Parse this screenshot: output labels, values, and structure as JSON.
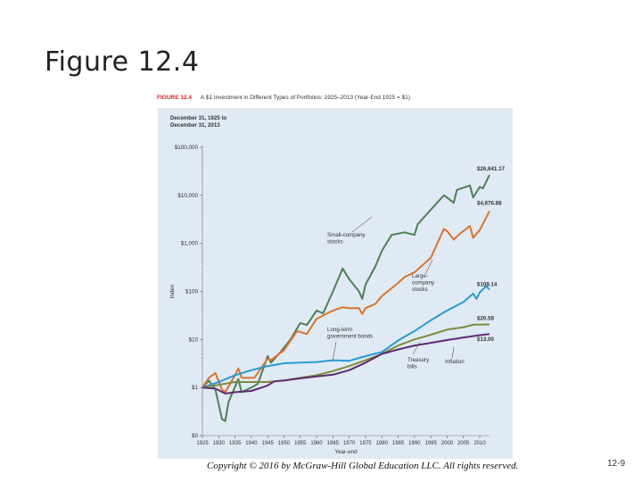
{
  "slide": {
    "title": "Figure 12.4",
    "copyright": "Copyright © 2016 by McGraw-Hill Global Education LLC. All rights reserved.",
    "number": "12-9"
  },
  "figure": {
    "label": "FIGURE 12.4",
    "caption": "A $1 Investment in Different Types of Portfolios: 1925–2013 (Year-End 1925 = $1)"
  },
  "chart_data": {
    "type": "line",
    "title": "A $1 Investment in Different Types of Portfolios: 1925–2013 (Year-End 1925 = $1)",
    "period_label": [
      "December 31, 1925 to",
      "December 31, 2013"
    ],
    "xlabel": "Year-end",
    "ylabel": "Index",
    "yscale": "log",
    "xlim": [
      1925,
      2013
    ],
    "ylim": [
      0.1,
      100000
    ],
    "x_ticks": [
      1925,
      1930,
      1935,
      1940,
      1945,
      1950,
      1955,
      1960,
      1965,
      1970,
      1975,
      1980,
      1985,
      1990,
      1995,
      2000,
      2005,
      2010
    ],
    "y_ticks": [
      {
        "value": 0.1,
        "label": "$0"
      },
      {
        "value": 1,
        "label": "$1"
      },
      {
        "value": 10,
        "label": "$10"
      },
      {
        "value": 100,
        "label": "$100"
      },
      {
        "value": 1000,
        "label": "$1,000"
      },
      {
        "value": 10000,
        "label": "$10,000"
      },
      {
        "value": 100000,
        "label": "$100,000"
      }
    ],
    "series": [
      {
        "name": "Small-company stocks",
        "color": "#4f7f55",
        "end_label": "$26,641.17",
        "x": [
          1925,
          1927,
          1929,
          1931,
          1932,
          1933,
          1936,
          1937,
          1940,
          1942,
          1945,
          1946,
          1949,
          1952,
          1955,
          1957,
          1960,
          1962,
          1965,
          1968,
          1970,
          1973,
          1974,
          1975,
          1978,
          1980,
          1983,
          1987,
          1990,
          1991,
          1995,
          1999,
          2000,
          2002,
          2003,
          2007,
          2008,
          2010,
          2011,
          2013
        ],
        "values": [
          1,
          1.4,
          0.9,
          0.22,
          0.2,
          0.5,
          1.5,
          0.8,
          1.0,
          1.2,
          4.5,
          3.3,
          5.5,
          10,
          22,
          20,
          40,
          35,
          100,
          300,
          180,
          100,
          70,
          140,
          330,
          700,
          1500,
          1700,
          1500,
          2500,
          5000,
          10000,
          9000,
          7000,
          13000,
          16000,
          9000,
          15000,
          14000,
          26641.17
        ]
      },
      {
        "name": "Large-company stocks",
        "color": "#d9742e",
        "end_label": "$4,676.88",
        "x": [
          1925,
          1927,
          1929,
          1931,
          1932,
          1935,
          1936,
          1937,
          1941,
          1945,
          1946,
          1950,
          1954,
          1957,
          1960,
          1965,
          1968,
          1970,
          1973,
          1974,
          1975,
          1978,
          1980,
          1985,
          1987,
          1990,
          1995,
          1999,
          2000,
          2002,
          2004,
          2007,
          2008,
          2010,
          2013
        ],
        "values": [
          1,
          1.6,
          2.0,
          0.9,
          0.8,
          1.8,
          2.5,
          1.6,
          1.6,
          4.0,
          3.7,
          6.0,
          15,
          13,
          27,
          40,
          47,
          45,
          45,
          34,
          45,
          55,
          80,
          150,
          200,
          250,
          500,
          2000,
          1800,
          1200,
          1600,
          2300,
          1300,
          1900,
          4676.88
        ]
      },
      {
        "name": "Long-term government bonds",
        "color": "#2a9ad0",
        "end_label": "$109.14",
        "x": [
          1925,
          1930,
          1935,
          1940,
          1945,
          1950,
          1955,
          1960,
          1965,
          1970,
          1975,
          1980,
          1985,
          1990,
          1995,
          2000,
          2005,
          2008,
          2009,
          2010,
          2012,
          2013
        ],
        "values": [
          1,
          1.3,
          1.8,
          2.3,
          2.8,
          3.2,
          3.3,
          3.4,
          3.7,
          3.6,
          4.5,
          5.5,
          9.5,
          15,
          25,
          40,
          60,
          90,
          70,
          95,
          130,
          109.14
        ]
      },
      {
        "name": "Treasury bills",
        "color": "#7e8a3c",
        "end_label": "$20.58",
        "x": [
          1925,
          1935,
          1945,
          1950,
          1955,
          1960,
          1965,
          1970,
          1975,
          1980,
          1985,
          1990,
          1995,
          2000,
          2005,
          2008,
          2010,
          2013
        ],
        "values": [
          1,
          1.3,
          1.3,
          1.4,
          1.6,
          1.8,
          2.2,
          2.8,
          3.7,
          5.0,
          7.5,
          10,
          12.5,
          16,
          18,
          20.3,
          20.5,
          20.58
        ]
      },
      {
        "name": "Inflation",
        "color": "#5d2c72",
        "end_label": "$13.00",
        "x": [
          1925,
          1929,
          1932,
          1935,
          1940,
          1945,
          1947,
          1950,
          1955,
          1960,
          1965,
          1970,
          1975,
          1980,
          1985,
          1990,
          1995,
          2000,
          2005,
          2010,
          2013
        ],
        "values": [
          1,
          0.95,
          0.75,
          0.8,
          0.85,
          1.1,
          1.35,
          1.4,
          1.55,
          1.7,
          1.85,
          2.3,
          3.3,
          5.0,
          6.2,
          7.5,
          8.5,
          9.7,
          11,
          12.3,
          13.0
        ]
      }
    ],
    "annotations": [
      {
        "text": [
          "Small-company",
          "stocks"
        ],
        "series": "Small-company stocks"
      },
      {
        "text": [
          "Large-",
          "company",
          "stocks"
        ],
        "series": "Large-company stocks"
      },
      {
        "text": [
          "Long-term",
          "government bonds"
        ],
        "series": "Long-term government bonds"
      },
      {
        "text": [
          "Treasury",
          "bills"
        ],
        "series": "Treasury bills"
      },
      {
        "text": [
          "Inflation"
        ],
        "series": "Inflation"
      }
    ]
  }
}
